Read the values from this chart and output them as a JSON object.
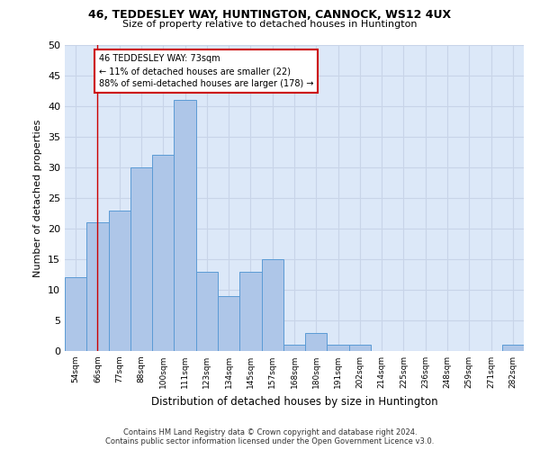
{
  "title1": "46, TEDDESLEY WAY, HUNTINGTON, CANNOCK, WS12 4UX",
  "title2": "Size of property relative to detached houses in Huntington",
  "xlabel": "Distribution of detached houses by size in Huntington",
  "ylabel": "Number of detached properties",
  "categories": [
    "54sqm",
    "66sqm",
    "77sqm",
    "88sqm",
    "100sqm",
    "111sqm",
    "123sqm",
    "134sqm",
    "145sqm",
    "157sqm",
    "168sqm",
    "180sqm",
    "191sqm",
    "202sqm",
    "214sqm",
    "225sqm",
    "236sqm",
    "248sqm",
    "259sqm",
    "271sqm",
    "282sqm"
  ],
  "values": [
    12,
    21,
    23,
    30,
    32,
    41,
    13,
    9,
    13,
    15,
    1,
    3,
    1,
    1,
    0,
    0,
    0,
    0,
    0,
    0,
    1
  ],
  "bar_color": "#aec6e8",
  "bar_edge_color": "#5b9bd5",
  "vline_bar_index": 1,
  "annotation_line1": "46 TEDDESLEY WAY: 73sqm",
  "annotation_line2": "← 11% of detached houses are smaller (22)",
  "annotation_line3": "88% of semi-detached houses are larger (178) →",
  "annotation_box_color": "#ffffff",
  "annotation_box_edge": "#cc0000",
  "vline_color": "#cc0000",
  "footnote1": "Contains HM Land Registry data © Crown copyright and database right 2024.",
  "footnote2": "Contains public sector information licensed under the Open Government Licence v3.0.",
  "ylim": [
    0,
    50
  ],
  "yticks": [
    0,
    5,
    10,
    15,
    20,
    25,
    30,
    35,
    40,
    45,
    50
  ],
  "grid_color": "#c8d4e8",
  "bg_color": "#dce8f8"
}
